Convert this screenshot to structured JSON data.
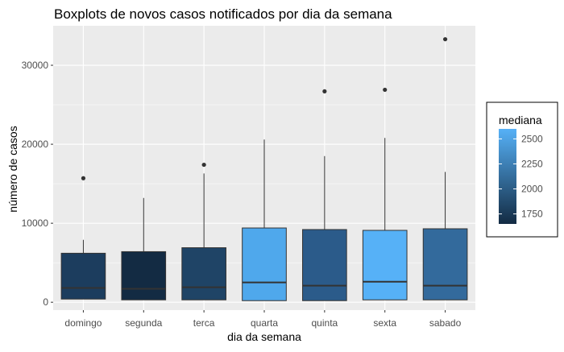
{
  "chart_data": {
    "type": "boxplot",
    "title": "Boxplots de novos casos notificados por dia da semana",
    "xlabel": "dia da semana",
    "ylabel": "número de casos",
    "ylim": [
      -1000,
      35000
    ],
    "yticks": [
      0,
      10000,
      20000,
      30000
    ],
    "grid": true,
    "categories": [
      "domingo",
      "segunda",
      "terca",
      "quarta",
      "quinta",
      "sexta",
      "sabado"
    ],
    "boxes": [
      {
        "category": "domingo",
        "whisker_low": 400,
        "q1": 400,
        "median": 1800,
        "q3": 6200,
        "whisker_high": 7900,
        "outliers": [
          15700
        ],
        "color": "#1c3d5e"
      },
      {
        "category": "segunda",
        "whisker_low": 300,
        "q1": 300,
        "median": 1700,
        "q3": 6400,
        "whisker_high": 13200,
        "outliers": [],
        "color": "#132b43"
      },
      {
        "category": "terca",
        "whisker_low": 300,
        "q1": 300,
        "median": 1900,
        "q3": 6900,
        "whisker_high": 16300,
        "outliers": [
          17400
        ],
        "color": "#1f4466"
      },
      {
        "category": "quarta",
        "whisker_low": 200,
        "q1": 200,
        "median": 2500,
        "q3": 9400,
        "whisker_high": 20600,
        "outliers": [],
        "color": "#4fa8ec"
      },
      {
        "category": "quinta",
        "whisker_low": 200,
        "q1": 200,
        "median": 2100,
        "q3": 9200,
        "whisker_high": 18500,
        "outliers": [
          26700
        ],
        "color": "#2b5b8a"
      },
      {
        "category": "sexta",
        "whisker_low": 300,
        "q1": 300,
        "median": 2600,
        "q3": 9100,
        "whisker_high": 20800,
        "outliers": [
          26900
        ],
        "color": "#56b1f7"
      },
      {
        "category": "sabado",
        "whisker_low": 300,
        "q1": 300,
        "median": 2100,
        "q3": 9300,
        "whisker_high": 16500,
        "outliers": [
          33300
        ],
        "color": "#336a9c"
      }
    ],
    "legend": {
      "title": "mediana",
      "placement": "right",
      "labels": [
        "2500",
        "2250",
        "2000",
        "1750"
      ],
      "values": [
        2500,
        2250,
        2000,
        1750
      ],
      "range": [
        1650,
        2600
      ],
      "low_color": "#132b43",
      "high_color": "#56b1f7"
    },
    "colors": {
      "panel_background": "#ebebeb",
      "grid_major": "#ffffff",
      "box_outline": "#333333",
      "outlier": "#333333"
    }
  }
}
